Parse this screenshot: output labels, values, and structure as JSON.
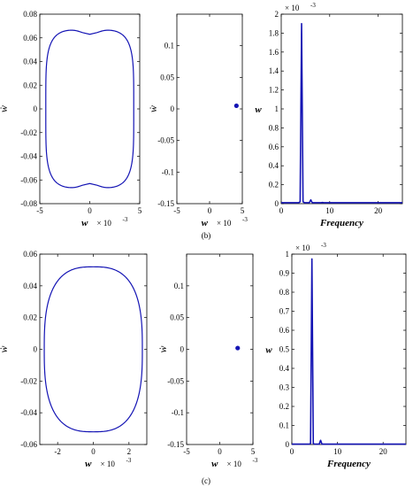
{
  "figure": {
    "labels": [
      "(b)",
      "(c)"
    ]
  },
  "colors": {
    "series": "#1414b4",
    "axis": "#000000"
  },
  "chart_data": [
    {
      "id": "b-phase",
      "type": "line",
      "xlabel": "w",
      "xlabel_multiplier": "× 10",
      "xlabel_exponent": "-3",
      "ylabel": "ẇ",
      "xlim": [
        -5,
        5
      ],
      "ylim": [
        -0.08,
        0.08
      ],
      "xticks": [
        -5,
        0,
        5
      ],
      "xtick_labels": [
        "-5",
        "0",
        "5"
      ],
      "yticks": [
        -0.08,
        -0.06,
        -0.04,
        -0.02,
        0,
        0.02,
        0.04,
        0.06,
        0.08
      ],
      "ytick_labels": [
        "-0.08",
        "-0.06",
        "-0.04",
        "-0.02",
        "0",
        "0.02",
        "0.04",
        "0.06",
        "0.08"
      ],
      "orbit": {
        "w_amplitude": 4.4,
        "wdot_amplitude": 0.067,
        "shape_exponent": 4.5,
        "edge_dip": 0.004
      }
    },
    {
      "id": "b-poincare",
      "type": "scatter",
      "xlabel": "w",
      "xlabel_multiplier": "× 10",
      "xlabel_exponent": "-3",
      "ylabel": "ẇ",
      "xlim": [
        -5,
        5
      ],
      "ylim": [
        -0.15,
        0.15
      ],
      "xticks": [
        -5,
        0,
        5
      ],
      "xtick_labels": [
        "-5",
        "0",
        "5"
      ],
      "yticks": [
        -0.15,
        -0.1,
        -0.05,
        0,
        0.05,
        0.1
      ],
      "ytick_labels": [
        "-0.15",
        "-0.1",
        "-0.05",
        "0",
        "0.05",
        "0.1"
      ],
      "points": [
        {
          "x": 4.1,
          "y": 0.005
        }
      ]
    },
    {
      "id": "b-spectrum",
      "type": "line",
      "xlabel": "Frequency",
      "ylabel": "w",
      "y_multiplier": "× 10",
      "y_exponent": "-3",
      "xlim": [
        0,
        25
      ],
      "ylim": [
        0,
        2
      ],
      "xticks": [
        0,
        10,
        20
      ],
      "xtick_labels": [
        "0",
        "10",
        "20"
      ],
      "yticks": [
        0,
        0.2,
        0.4,
        0.6,
        0.8,
        1,
        1.2,
        1.4,
        1.6,
        1.8,
        2
      ],
      "ytick_labels": [
        "0",
        "0.2",
        "0.4",
        "0.6",
        "0.8",
        "1",
        "1.2",
        "1.4",
        "1.6",
        "1.8",
        "2"
      ],
      "x": [
        0,
        3.6,
        3.9,
        4.2,
        4.5,
        4.8,
        5.2,
        5.8,
        6.1,
        6.4,
        6.8,
        7.5,
        8.2,
        8.5,
        8.8,
        9.5,
        25
      ],
      "y": [
        0.01,
        0.01,
        0.02,
        1.9,
        0.02,
        0.01,
        0.01,
        0.01,
        0.04,
        0.01,
        0.01,
        0.01,
        0.01,
        0.012,
        0.01,
        0.01,
        0.01
      ]
    },
    {
      "id": "c-phase",
      "type": "line",
      "xlabel": "w",
      "xlabel_multiplier": "× 10",
      "xlabel_exponent": "-3",
      "ylabel": "ẇ",
      "xlim": [
        -3,
        3
      ],
      "ylim": [
        -0.06,
        0.06
      ],
      "xticks": [
        -2,
        0,
        2
      ],
      "xtick_labels": [
        "-2",
        "0",
        "2"
      ],
      "yticks": [
        -0.06,
        -0.04,
        -0.02,
        0,
        0.02,
        0.04,
        0.06
      ],
      "ytick_labels": [
        "-0.06",
        "-0.04",
        "-0.02",
        "0",
        "0.02",
        "0.04",
        "0.06"
      ],
      "orbit": {
        "w_amplitude": 2.75,
        "wdot_amplitude": 0.052,
        "shape_exponent": 2.8,
        "edge_dip": 0
      }
    },
    {
      "id": "c-poincare",
      "type": "scatter",
      "xlabel": "w",
      "xlabel_multiplier": "× 10",
      "xlabel_exponent": "-3",
      "ylabel": "ẇ",
      "xlim": [
        -5,
        5
      ],
      "ylim": [
        -0.15,
        0.15
      ],
      "xticks": [
        -5,
        0,
        5
      ],
      "xtick_labels": [
        "-5",
        "0",
        "5"
      ],
      "yticks": [
        -0.15,
        -0.1,
        -0.05,
        0,
        0.05,
        0.1
      ],
      "ytick_labels": [
        "-0.15",
        "-0.1",
        "-0.05",
        "0",
        "0.05",
        "0.1"
      ],
      "points": [
        {
          "x": 2.7,
          "y": 0.002
        }
      ]
    },
    {
      "id": "c-spectrum",
      "type": "line",
      "xlabel": "Frequency",
      "ylabel": "w",
      "y_multiplier": "× 10",
      "y_exponent": "-3",
      "xlim": [
        0,
        25
      ],
      "ylim": [
        0,
        1
      ],
      "xticks": [
        0,
        10,
        20
      ],
      "xtick_labels": [
        "0",
        "10",
        "20"
      ],
      "yticks": [
        0,
        0.1,
        0.2,
        0.3,
        0.4,
        0.5,
        0.6,
        0.7,
        0.8,
        0.9,
        1
      ],
      "ytick_labels": [
        "0",
        "0.1",
        "0.2",
        "0.3",
        "0.4",
        "0.5",
        "0.6",
        "0.7",
        "0.8",
        "0.9",
        "1"
      ],
      "x": [
        0,
        3.8,
        4.1,
        4.4,
        4.7,
        5.0,
        5.4,
        6.0,
        6.3,
        6.6,
        7.0,
        9.0,
        25
      ],
      "y": [
        0.002,
        0.002,
        0.005,
        0.975,
        0.005,
        0.002,
        0.002,
        0.002,
        0.022,
        0.002,
        0.002,
        0.002,
        0.002
      ]
    }
  ]
}
